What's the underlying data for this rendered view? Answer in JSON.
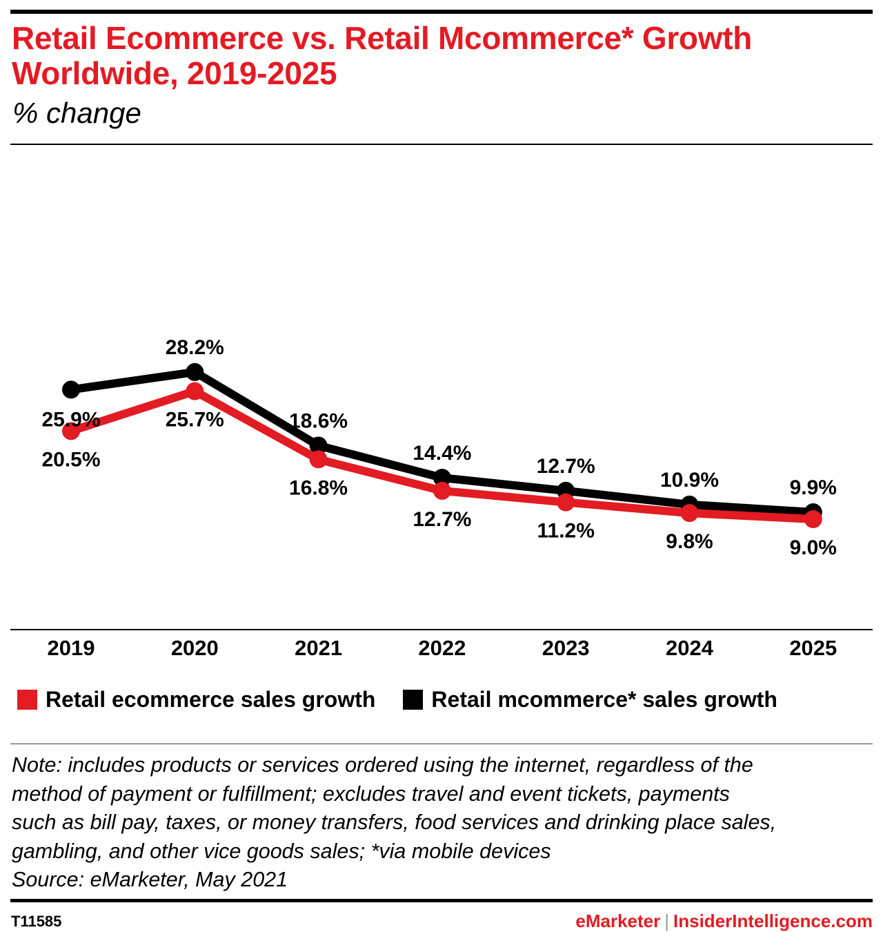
{
  "header": {
    "title": "Retail Ecommerce vs. Retail Mcommerce* Growth Worldwide, 2019-2025",
    "subtitle": "% change"
  },
  "chart_data": {
    "type": "line",
    "title": "Retail Ecommerce vs. Retail Mcommerce* Growth Worldwide, 2019-2025",
    "subtitle": "% change",
    "x": [
      "2019",
      "2020",
      "2021",
      "2022",
      "2023",
      "2024",
      "2025"
    ],
    "series": [
      {
        "name": "Retail ecommerce sales growth",
        "color": "#e31b23",
        "values": [
          20.5,
          25.7,
          16.8,
          12.7,
          11.2,
          9.8,
          9.0
        ],
        "labels": [
          "20.5%",
          "25.7%",
          "16.8%",
          "12.7%",
          "11.2%",
          "9.8%",
          "9.0%"
        ]
      },
      {
        "name": "Retail mcommerce* sales growth",
        "color": "#000000",
        "values": [
          25.9,
          28.2,
          18.6,
          14.4,
          12.7,
          10.9,
          9.9
        ],
        "labels": [
          "25.9%",
          "28.2%",
          "18.6%",
          "14.4%",
          "12.7%",
          "10.9%",
          "9.9%"
        ]
      }
    ],
    "grid": false,
    "legend_position": "bottom-left"
  },
  "notes": {
    "lines": [
      "Note: includes products or services ordered using the internet, regardless of the",
      "method of payment or fulfillment; excludes travel and event tickets, payments",
      "such as bill pay, taxes, or money transfers, food services and drinking place sales,",
      "gambling, and other vice goods sales; *via mobile devices",
      "Source: eMarketer, May 2021"
    ]
  },
  "footer": {
    "chart_id": "T11585",
    "brand_1": "eMarketer",
    "separator": "|",
    "brand_2": "InsiderIntelligence.com"
  }
}
